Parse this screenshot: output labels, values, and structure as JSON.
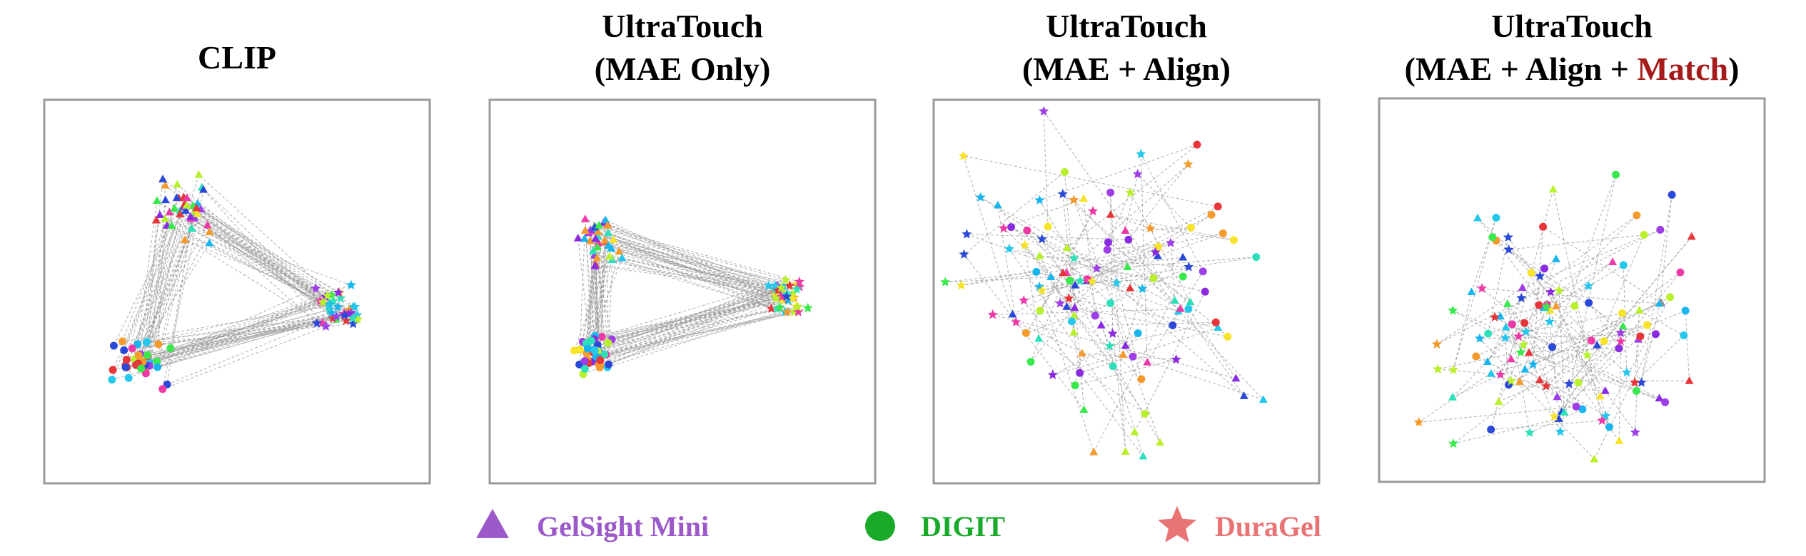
{
  "chart_data": {
    "type": "scatter",
    "legend_placement": "bottom-center",
    "legend": [
      {
        "label": "GelSight Mini",
        "marker": "triangle",
        "color": "#9b59c9"
      },
      {
        "label": "DIGIT",
        "marker": "circle",
        "color": "#1aaa2a"
      },
      {
        "label": "DuraGel",
        "marker": "star",
        "color": "#e87475"
      }
    ],
    "point_palette": [
      "#2b49d8",
      "#25c8ec",
      "#9d3ee6",
      "#ee3aa6",
      "#e8353a",
      "#f59a2d",
      "#f7e32a",
      "#b9f02c",
      "#3ae94c",
      "#2ee0b9",
      "#8a2be2",
      "#19b6ee"
    ],
    "dashed_pair_lines": true,
    "grid": false,
    "panels": [
      {
        "title_lines": [
          [
            {
              "text": "CLIP",
              "color": "#000000"
            }
          ]
        ],
        "xlim": [
          0,
          100
        ],
        "ylim": [
          0,
          100
        ],
        "clusters": {
          "triangle": [
            36,
            28,
            10
          ],
          "circle": [
            25,
            68,
            8
          ],
          "star": [
            76,
            54,
            7
          ]
        }
      },
      {
        "title_lines": [
          [
            {
              "text": "UltraTouch",
              "color": "#000000"
            }
          ],
          [
            {
              "text": "(MAE Only)",
              "color": "#000000"
            }
          ]
        ],
        "xlim": [
          0,
          100
        ],
        "ylim": [
          0,
          100
        ],
        "clusters": {
          "triangle": [
            28,
            36,
            8
          ],
          "circle": [
            27,
            66,
            6
          ],
          "star": [
            77,
            51,
            6
          ]
        }
      },
      {
        "title_lines": [
          [
            {
              "text": "UltraTouch",
              "color": "#000000"
            }
          ],
          [
            {
              "text": "(MAE + Align)",
              "color": "#000000"
            }
          ]
        ],
        "xlim": [
          0,
          100
        ],
        "ylim": [
          0,
          100
        ],
        "clusters": {
          "triangle": [
            50,
            55,
            40
          ],
          "circle": [
            55,
            45,
            42
          ],
          "star": [
            35,
            40,
            40
          ]
        }
      },
      {
        "title_lines": [
          [
            {
              "text": "UltraTouch",
              "color": "#000000"
            }
          ],
          [
            {
              "text": "(MAE + Align + ",
              "color": "#000000"
            },
            {
              "text": "Match",
              "color": "#a51a1a"
            },
            {
              "text": ")",
              "color": "#000000"
            }
          ]
        ],
        "xlim": [
          0,
          100
        ],
        "ylim": [
          0,
          100
        ],
        "clusters": {
          "triangle": [
            45,
            60,
            40
          ],
          "circle": [
            55,
            55,
            40
          ],
          "star": [
            40,
            65,
            35
          ]
        }
      }
    ]
  }
}
